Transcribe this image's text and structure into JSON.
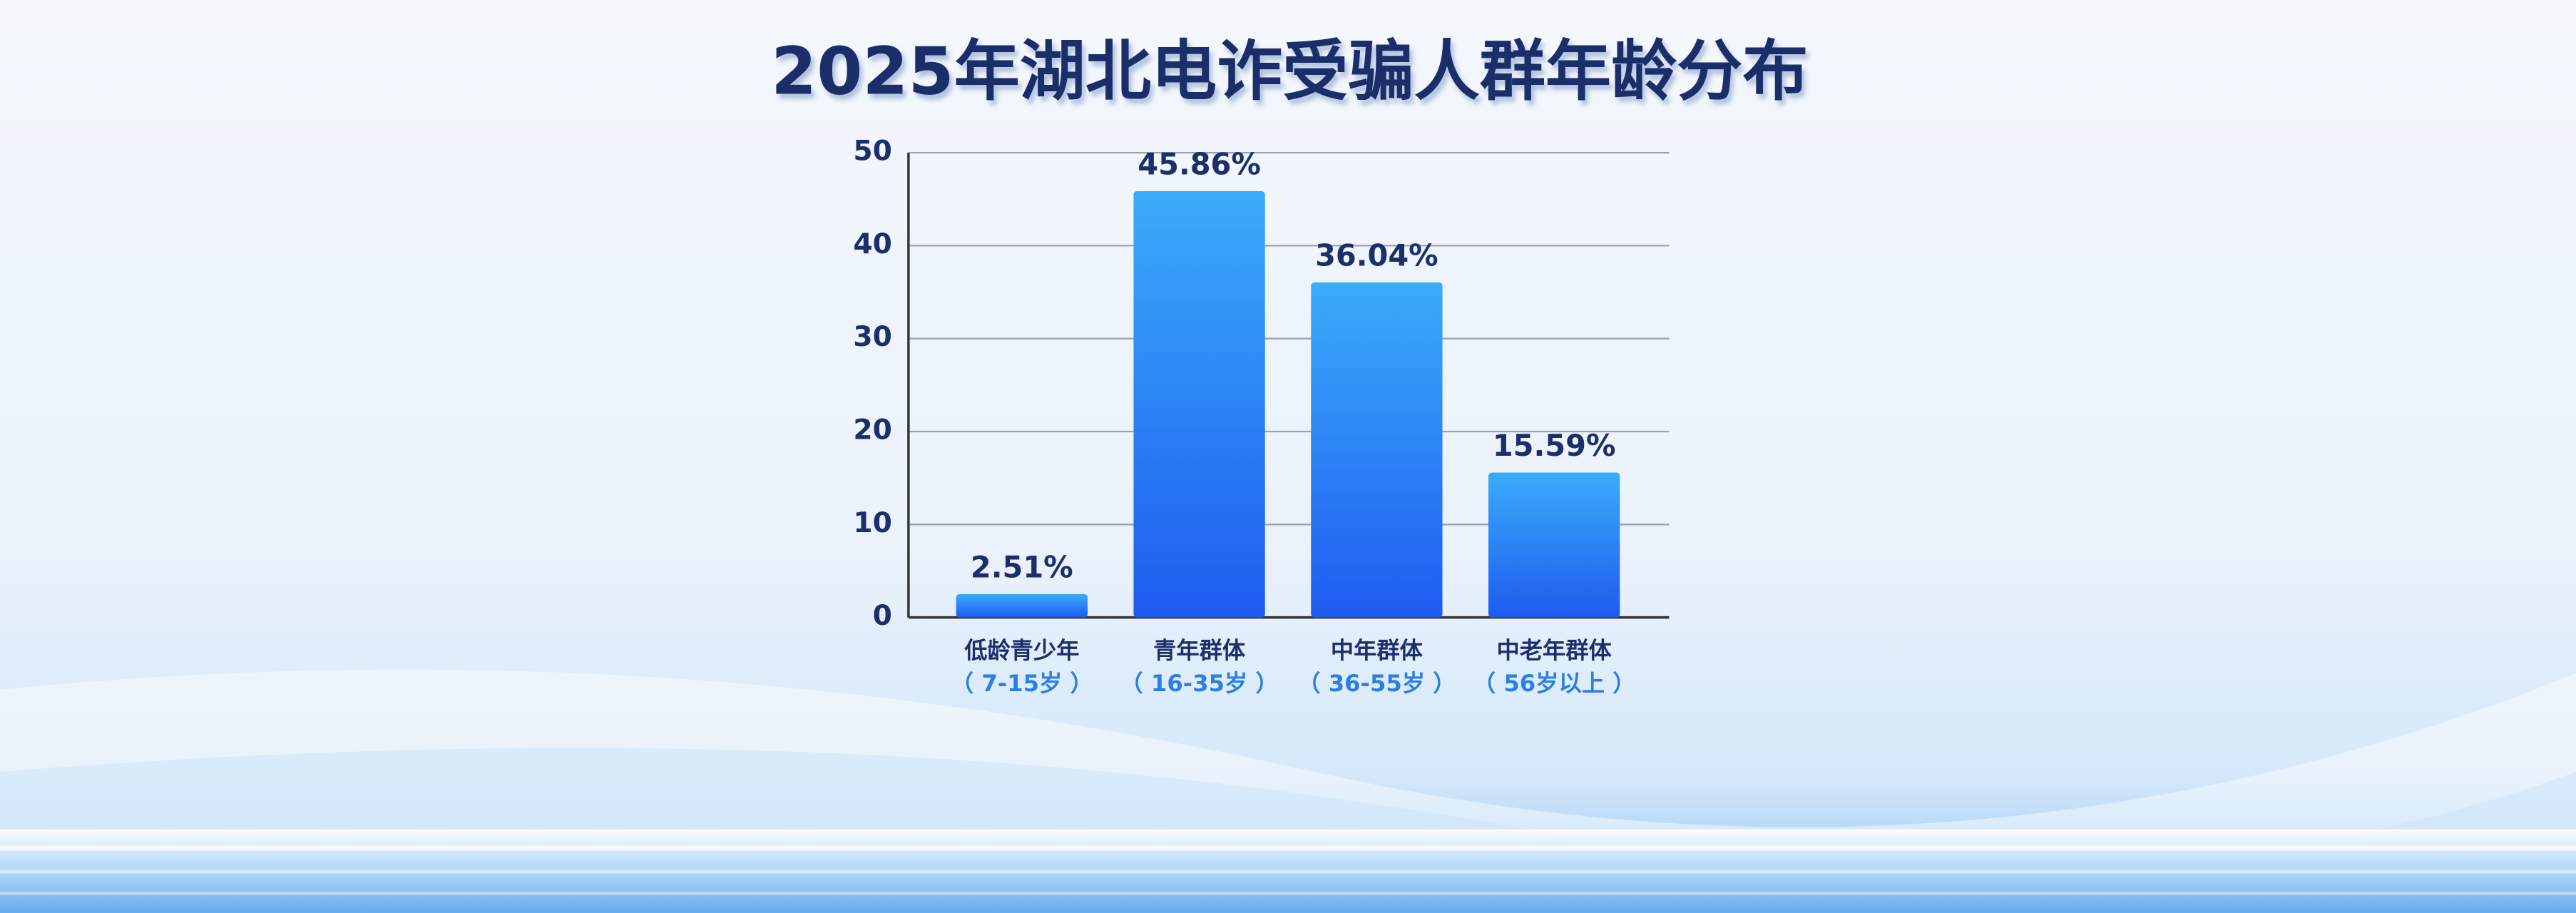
{
  "chart_data": {
    "type": "bar",
    "title": "2025年湖北电诈受骗人群年龄分布",
    "categories": [
      "低龄青少年",
      "青年群体",
      "中年群体",
      "中老年群体"
    ],
    "category_ranges": [
      "（ 7-15岁 ）",
      "（ 16-35岁 ）",
      "（ 36-55岁 ）",
      "（ 56岁以上 ）"
    ],
    "values": [
      2.51,
      45.86,
      36.04,
      15.59
    ],
    "value_labels": [
      "2.51%",
      "45.86%",
      "36.04%",
      "15.59%"
    ],
    "colors": [
      "#3aacfa",
      "#1e5bf0"
    ],
    "ylim": [
      0,
      50
    ],
    "yticks": [
      0,
      10,
      20,
      30,
      40,
      50
    ],
    "grid": true
  }
}
